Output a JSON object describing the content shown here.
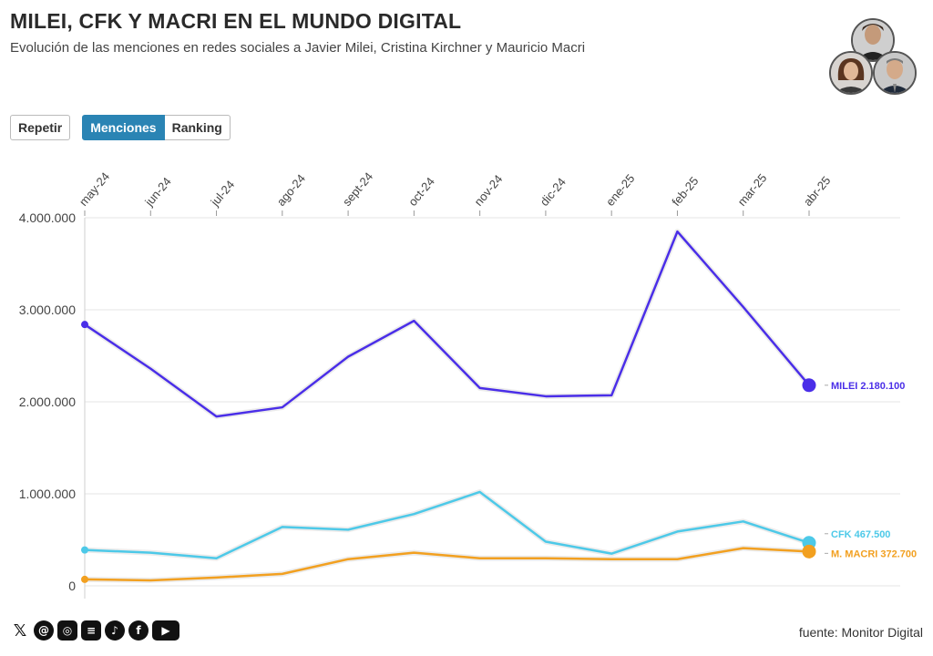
{
  "header": {
    "title": "MILEI, CFK Y MACRI EN EL MUNDO DIGITAL",
    "subtitle": "Evolución de las menciones en redes sociales a Javier Milei, Cristina Kirchner y Mauricio Macri"
  },
  "controls": {
    "repeat_label": "Repetir",
    "mentions_label": "Menciones",
    "ranking_label": "Ranking"
  },
  "footer": {
    "source": "fuente: Monitor Digital",
    "social_icons": [
      "x-icon",
      "threads-icon",
      "instagram-icon",
      "substack-icon",
      "tiktok-icon",
      "facebook-icon",
      "youtube-icon"
    ]
  },
  "chart_data": {
    "type": "line",
    "categories": [
      "may-24",
      "jun-24",
      "jul-24",
      "ago-24",
      "sept-24",
      "oct-24",
      "nov-24",
      "dic-24",
      "ene-25",
      "feb-25",
      "mar-25",
      "abr-25"
    ],
    "ylim": [
      0,
      4000000
    ],
    "yticks": [
      0,
      1000000,
      2000000,
      3000000,
      4000000
    ],
    "ytick_labels": [
      "0",
      "1.000.000",
      "2.000.000",
      "3.000.000",
      "4.000.000"
    ],
    "grid": true,
    "series": [
      {
        "name": "MILEI",
        "label": "MILEI 2.180.100",
        "color": "#4a2ee8",
        "values": [
          2840000,
          2360000,
          1840000,
          1940000,
          2490000,
          2880000,
          2150000,
          2060000,
          2070000,
          3850000,
          3030000,
          2180100
        ]
      },
      {
        "name": "CFK",
        "label": "CFK 467.500",
        "color": "#4dc9e8",
        "values": [
          390000,
          360000,
          300000,
          640000,
          610000,
          780000,
          1020000,
          480000,
          350000,
          590000,
          700000,
          467500
        ]
      },
      {
        "name": "M. MACRI",
        "label": "M. MACRI 372.700",
        "color": "#f2a020",
        "values": [
          70000,
          60000,
          90000,
          130000,
          290000,
          360000,
          300000,
          300000,
          290000,
          290000,
          410000,
          372700
        ]
      }
    ]
  }
}
